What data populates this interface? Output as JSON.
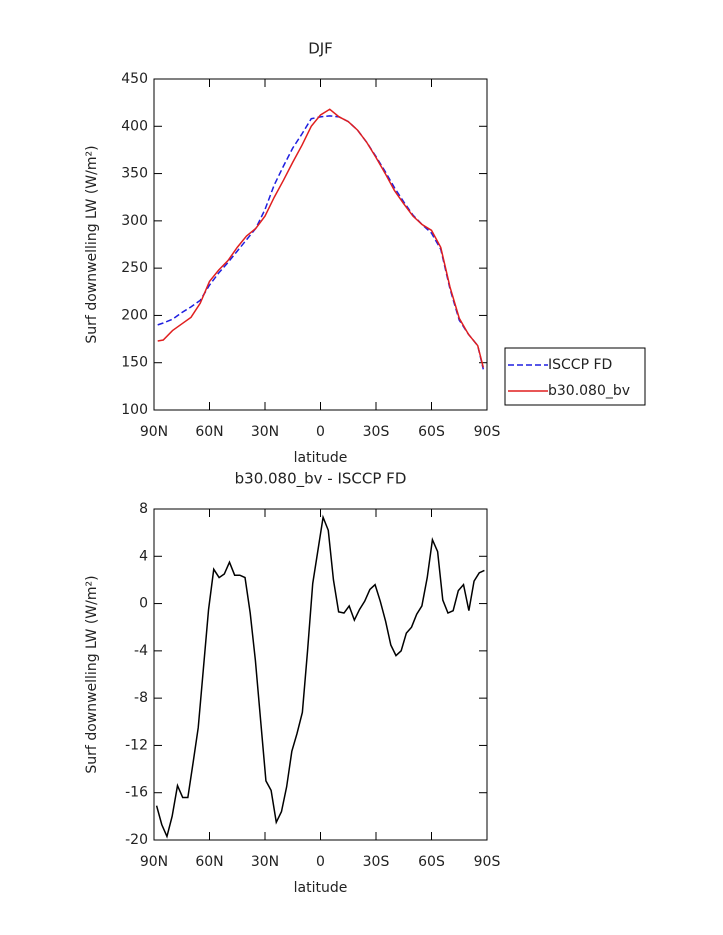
{
  "chart_data": [
    {
      "type": "line",
      "title": "DJF",
      "xlabel": "latitude",
      "ylabel": "Surf downwelling LW (W/m²)",
      "x": [
        88,
        85,
        80,
        75,
        70,
        65,
        60,
        55,
        50,
        45,
        40,
        35,
        30,
        25,
        20,
        15,
        10,
        5,
        0,
        -5,
        -10,
        -15,
        -20,
        -25,
        -30,
        -35,
        -40,
        -45,
        -50,
        -55,
        -60,
        -65,
        -70,
        -75,
        -80,
        -85,
        -88
      ],
      "series": [
        {
          "name": "ISCCP FD",
          "color": "#1f1fe0",
          "linestyle": "dashed",
          "values": [
            190,
            192,
            196,
            203,
            209,
            216,
            232,
            245,
            256,
            268,
            280,
            292,
            312,
            338,
            358,
            377,
            392,
            408,
            410,
            411,
            410,
            405,
            396,
            383,
            368,
            352,
            335,
            320,
            306,
            296,
            287,
            270,
            228,
            195,
            180,
            168,
            143
          ]
        },
        {
          "name": "b30.080_bv",
          "color": "#e01f1f",
          "linestyle": "solid",
          "values": [
            173,
            174,
            184,
            191,
            198,
            213,
            236,
            248,
            258,
            272,
            284,
            292,
            305,
            325,
            343,
            362,
            380,
            400,
            412,
            418,
            410,
            405,
            396,
            383,
            367,
            350,
            332,
            318,
            305,
            296,
            290,
            272,
            230,
            197,
            180,
            168,
            145
          ]
        }
      ],
      "xlim": [
        90,
        -90
      ],
      "xticks": [
        {
          "value": 90,
          "label": "90N"
        },
        {
          "value": 60,
          "label": "60N"
        },
        {
          "value": 30,
          "label": "30N"
        },
        0,
        {
          "value": -30,
          "label": "30S"
        },
        {
          "value": -60,
          "label": "60S"
        },
        {
          "value": -90,
          "label": "90S"
        }
      ],
      "ylim": [
        100,
        450
      ],
      "yticks": [
        100,
        150,
        200,
        250,
        300,
        350,
        400,
        450
      ],
      "legend": "right"
    },
    {
      "type": "line",
      "title": "b30.080_bv - ISCCP FD",
      "xlabel": "latitude",
      "ylabel": "Surf downwelling LW (W/m²)",
      "x": [
        88.6,
        85.8,
        83.0,
        80.2,
        77.3,
        74.5,
        71.7,
        68.9,
        66.1,
        63.3,
        60.5,
        57.7,
        54.8,
        52.0,
        49.2,
        46.4,
        43.6,
        40.8,
        38.0,
        35.2,
        32.3,
        29.5,
        26.7,
        23.9,
        21.1,
        18.3,
        15.5,
        12.7,
        9.8,
        7.0,
        4.2,
        1.4,
        -1.4,
        -4.2,
        -7.0,
        -9.8,
        -12.7,
        -15.5,
        -18.3,
        -21.1,
        -23.9,
        -26.7,
        -29.5,
        -32.3,
        -35.2,
        -38.0,
        -40.8,
        -43.6,
        -46.4,
        -49.2,
        -52.0,
        -54.8,
        -57.7,
        -60.5,
        -63.3,
        -66.1,
        -68.9,
        -71.7,
        -74.5,
        -77.3,
        -80.2,
        -83.0,
        -85.8,
        -88.6
      ],
      "values": [
        -17.1,
        -18.7,
        -19.7,
        -18,
        -15.4,
        -16.4,
        -16.4,
        -13.5,
        -10.5,
        -5.5,
        -0.5,
        2.9,
        2.2,
        2.5,
        3.5,
        2.4,
        2.4,
        2.2,
        -0.8,
        -4.8,
        -10,
        -15,
        -15.8,
        -18.5,
        -17.6,
        -15.5,
        -12.5,
        -11,
        -9.2,
        -4,
        1.7,
        4.5,
        7.3,
        6.2,
        2,
        -0.7,
        -0.8,
        -0.2,
        -1.4,
        -0.5,
        0.2,
        1.2,
        1.6,
        0.2,
        -1.5,
        -3.5,
        -4.4,
        -4,
        -2.5,
        -2,
        -0.9,
        -0.2,
        2.2,
        5.4,
        4.4,
        0.3,
        -0.8,
        -0.6,
        1.1,
        1.6,
        -0.6,
        1.9,
        2.6,
        2.8
      ],
      "color": "#000000",
      "linestyle": "solid",
      "xlim": [
        90,
        -90
      ],
      "xticks": [
        {
          "value": 90,
          "label": "90N"
        },
        {
          "value": 60,
          "label": "60N"
        },
        {
          "value": 30,
          "label": "30N"
        },
        0,
        {
          "value": -30,
          "label": "30S"
        },
        {
          "value": -60,
          "label": "60S"
        },
        {
          "value": -90,
          "label": "90S"
        }
      ],
      "ylim": [
        -20,
        8
      ],
      "yticks": [
        -20,
        -16,
        -12,
        -8,
        -4,
        0,
        4,
        8
      ]
    }
  ]
}
